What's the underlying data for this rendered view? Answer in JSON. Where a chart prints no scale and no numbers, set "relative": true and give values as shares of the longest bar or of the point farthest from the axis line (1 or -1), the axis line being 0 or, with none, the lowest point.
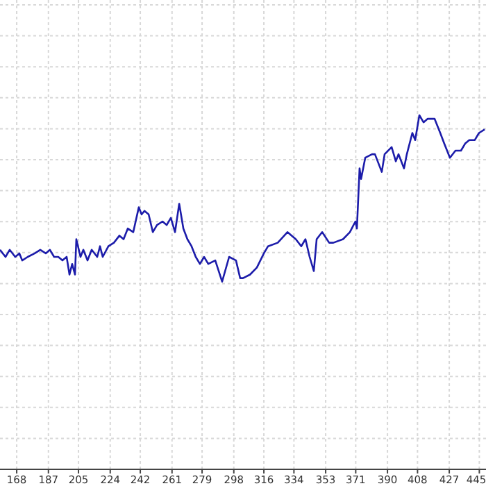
{
  "chart_data": {
    "type": "line",
    "relative": true,
    "grid": true,
    "xlim": [
      158,
      449
    ],
    "xticks": [
      168,
      187,
      205,
      224,
      242,
      261,
      279,
      298,
      316,
      334,
      353,
      371,
      390,
      408,
      427,
      445
    ],
    "series": [
      {
        "color": "#1c1caa",
        "x": [
          158,
          161.3,
          163.8,
          167.1,
          169.6,
          171.3,
          174.6,
          178.8,
          182.1,
          185.4,
          187.9,
          190.4,
          192.9,
          195.4,
          197.9,
          199.6,
          201.2,
          202.9,
          203.7,
          206.2,
          207.9,
          210.4,
          212.9,
          216.2,
          217.9,
          219.5,
          222.9,
          226.2,
          229.5,
          232,
          234.5,
          237.8,
          241.1,
          242.8,
          244.5,
          247,
          249.5,
          252,
          255.3,
          257.8,
          260.3,
          262.8,
          265.3,
          267.8,
          270.2,
          272.7,
          275.2,
          277.7,
          280.2,
          282.7,
          286.9,
          291,
          295.2,
          299.3,
          301.8,
          303.5,
          307.7,
          311.8,
          316,
          318.5,
          324.3,
          330.1,
          335.1,
          338.4,
          340.9,
          343.4,
          345.9,
          347.6,
          350.9,
          355.1,
          357.6,
          363.4,
          367.5,
          370.8,
          371.7,
          373.3,
          374.2,
          376.7,
          380.8,
          382.5,
          386.6,
          388.3,
          392.5,
          395,
          396.6,
          399.1,
          399.9,
          401.6,
          404.9,
          406.6,
          409.1,
          411.6,
          414.1,
          418.2,
          421.6,
          424,
          427.4,
          430.7,
          434,
          436.5,
          439,
          442.3,
          444.8,
          448.2
        ],
        "values": [
          0.62,
          0.6,
          0.62,
          0.6,
          0.61,
          0.59,
          0.6,
          0.61,
          0.62,
          0.61,
          0.62,
          0.6,
          0.6,
          0.59,
          0.6,
          0.55,
          0.58,
          0.55,
          0.65,
          0.6,
          0.62,
          0.59,
          0.62,
          0.6,
          0.63,
          0.6,
          0.63,
          0.64,
          0.66,
          0.65,
          0.68,
          0.67,
          0.74,
          0.72,
          0.73,
          0.72,
          0.67,
          0.69,
          0.7,
          0.69,
          0.71,
          0.67,
          0.75,
          0.68,
          0.65,
          0.63,
          0.6,
          0.58,
          0.6,
          0.58,
          0.59,
          0.53,
          0.6,
          0.59,
          0.54,
          0.54,
          0.55,
          0.57,
          0.61,
          0.63,
          0.64,
          0.67,
          0.65,
          0.63,
          0.65,
          0.6,
          0.56,
          0.65,
          0.67,
          0.64,
          0.64,
          0.65,
          0.67,
          0.7,
          0.68,
          0.85,
          0.82,
          0.88,
          0.89,
          0.89,
          0.84,
          0.89,
          0.91,
          0.87,
          0.89,
          0.86,
          0.85,
          0.89,
          0.95,
          0.93,
          1,
          0.98,
          0.99,
          0.99,
          0.95,
          0.92,
          0.88,
          0.9,
          0.9,
          0.92,
          0.93,
          0.93,
          0.95,
          0.96
        ]
      }
    ]
  }
}
